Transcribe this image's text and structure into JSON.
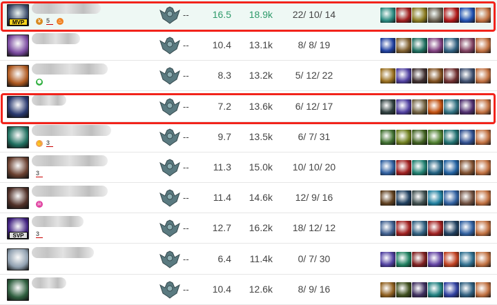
{
  "rows": [
    {
      "tag": "MVP",
      "badges": [
        "coin",
        "5",
        "fire"
      ],
      "score": "16.5",
      "gold": "18.9k",
      "kda": "22/ 10/ 14",
      "rank": "--",
      "highlight": true,
      "avatar": "#3a4a6a",
      "items": [
        "#2a8a80",
        "#a02020",
        "#8a7a20",
        "#6a6050",
        "#b01818",
        "#2050b0",
        "#c07040"
      ]
    },
    {
      "tag": "",
      "badges": [],
      "score": "10.4",
      "gold": "13.1k",
      "kda": "8/ 8/ 19",
      "rank": "--",
      "avatar": "#7a4aa0",
      "items": [
        "#2040a0",
        "#806030",
        "#207060",
        "#804080",
        "#306080",
        "#804060",
        "#c07040"
      ]
    },
    {
      "tag": "",
      "badges": [
        "shield"
      ],
      "score": "8.3",
      "gold": "13.2k",
      "kda": "5/ 12/ 22",
      "rank": "--",
      "avatar": "#b05a20",
      "items": [
        "#9a7020",
        "#5040a0",
        "#403030",
        "#805020",
        "#703030",
        "#405070",
        "#c07040"
      ]
    },
    {
      "tag": "",
      "badges": [],
      "score": "7.2",
      "gold": "13.6k",
      "kda": "6/ 12/ 17",
      "rank": "--",
      "highlight": true,
      "avatar": "#2a3a70",
      "items": [
        "#304040",
        "#5040a0",
        "#706040",
        "#c05010",
        "#307080",
        "#503070",
        "#c07040"
      ]
    },
    {
      "tag": "",
      "badges": [
        "hand",
        "3"
      ],
      "score": "9.7",
      "gold": "13.5k",
      "kda": "6/ 7/ 31",
      "rank": "--",
      "avatar": "#207060",
      "items": [
        "#407030",
        "#708020",
        "#406020",
        "#508030",
        "#207070",
        "#305090",
        "#c07040"
      ]
    },
    {
      "tag": "",
      "badges": [
        "3"
      ],
      "score": "11.3",
      "gold": "15.0k",
      "kda": "10/ 10/ 20",
      "rank": "--",
      "avatar": "#6a4030",
      "items": [
        "#3060a0",
        "#a02020",
        "#208070",
        "#206080",
        "#2060a0",
        "#805030",
        "#c07040"
      ]
    },
    {
      "tag": "",
      "badges": [
        "skull"
      ],
      "score": "11.4",
      "gold": "14.6k",
      "kda": "12/ 9/ 16",
      "rank": "--",
      "avatar": "#503028",
      "items": [
        "#604020",
        "#204060",
        "#405050",
        "#2080a0",
        "#3060a0",
        "#705040",
        "#c07040"
      ]
    },
    {
      "tag": "SVP",
      "badges": [
        "3"
      ],
      "score": "12.7",
      "gold": "16.2k",
      "kda": "18/ 12/ 12",
      "rank": "--",
      "avatar": "#402080",
      "items": [
        "#406090",
        "#a02020",
        "#306080",
        "#a02020",
        "#204060",
        "#3060a0",
        "#c07040"
      ]
    },
    {
      "tag": "",
      "badges": [],
      "score": "6.4",
      "gold": "11.4k",
      "kda": "0/ 7/ 30",
      "rank": "--",
      "avatar": "#90a0b0",
      "items": [
        "#5040a0",
        "#208060",
        "#802020",
        "#6040a0",
        "#c04020",
        "#307090",
        "#c07040"
      ]
    },
    {
      "tag": "",
      "badges": [],
      "score": "10.4",
      "gold": "12.6k",
      "kda": "8/ 9/ 16",
      "rank": "--",
      "avatar": "#306040",
      "items": [
        "#906020",
        "#405020",
        "#403060",
        "#208080",
        "#3040a0",
        "#306080",
        "#c07040"
      ]
    }
  ],
  "colors": {
    "highlight": "#f2231b",
    "mvp_bg": "#eef8f4",
    "top_stat": "#2e9a6a"
  }
}
